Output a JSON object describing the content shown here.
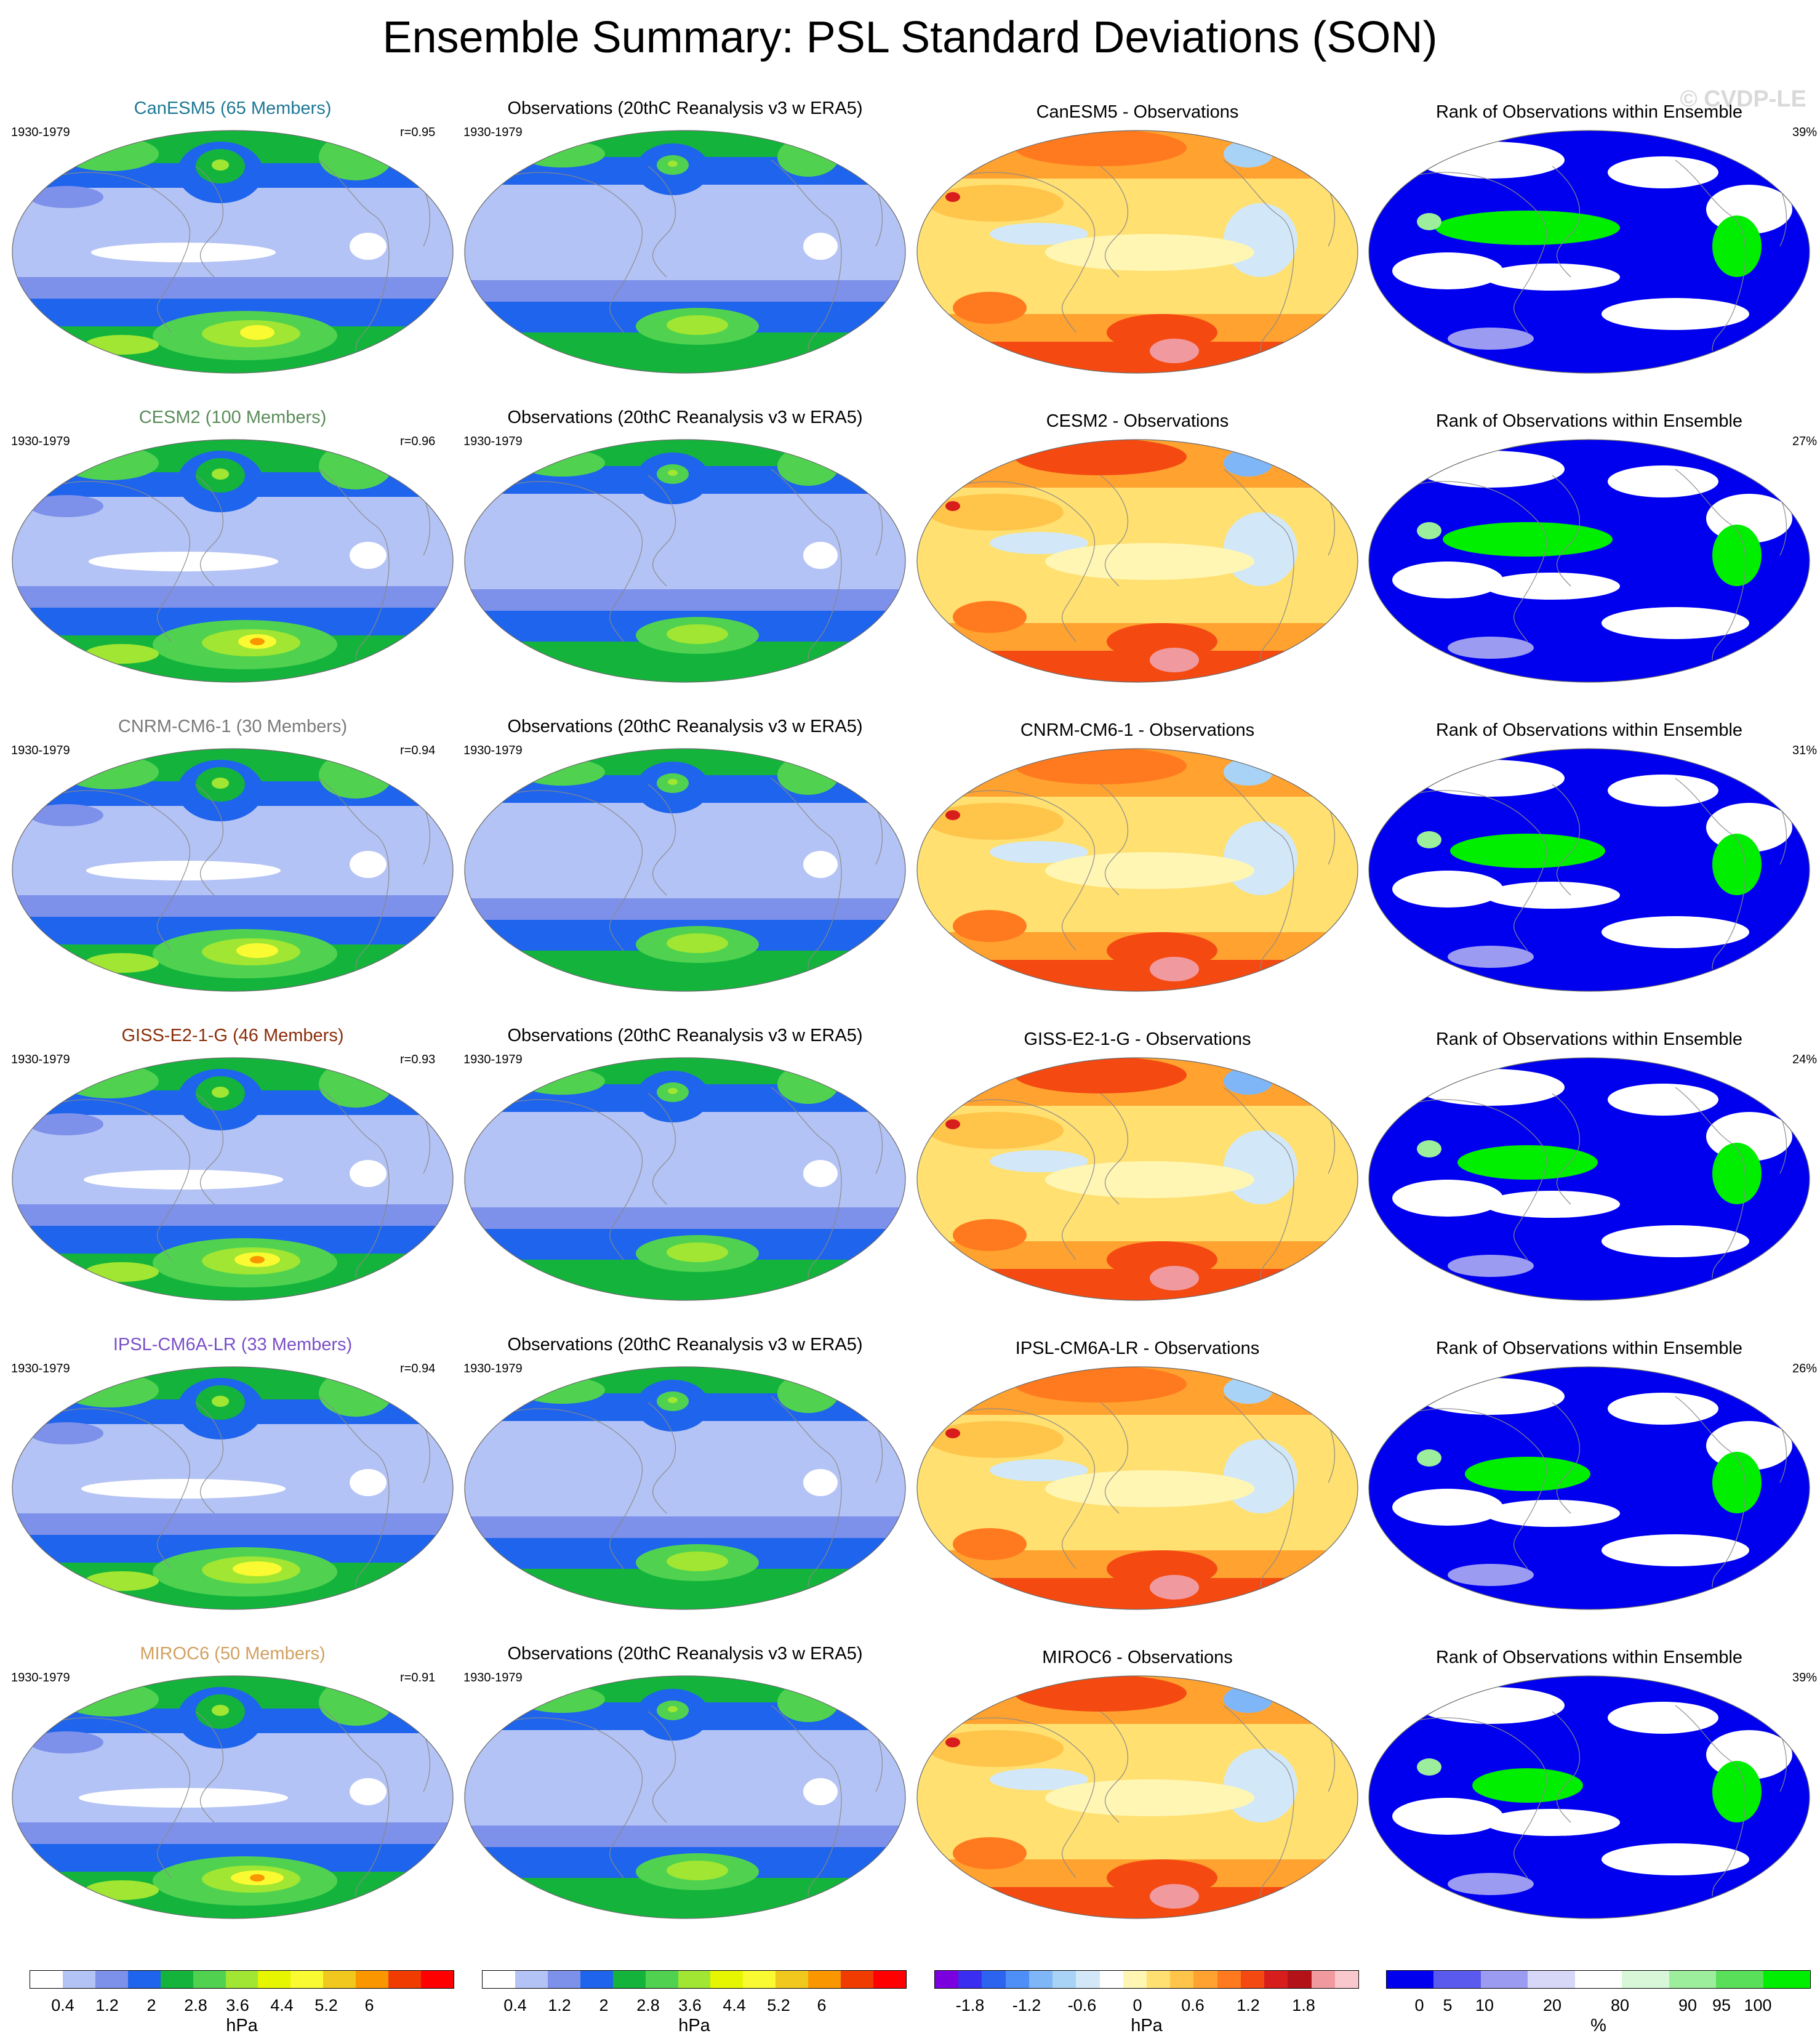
{
  "title": "Ensemble Summary: PSL Standard Deviations (SON)",
  "watermark": "© CVDP-LE",
  "colors": {
    "std_scale": [
      "#ffffff",
      "#b4c3f5",
      "#7d90ea",
      "#1e64ec",
      "#14b43c",
      "#50d250",
      "#a0e632",
      "#e6f500",
      "#fafa32",
      "#f0c81e",
      "#fa9600",
      "#f03c00",
      "#ff0000"
    ],
    "diff_scale": [
      "#7a00e0",
      "#3a2ef0",
      "#2c64ef",
      "#4e8ff7",
      "#7fb6f7",
      "#a8d3f6",
      "#d2e8f8",
      "#ffffff",
      "#fff6b4",
      "#ffe070",
      "#ffc44a",
      "#ffa230",
      "#ff7a1e",
      "#f44a12",
      "#d81d1d",
      "#b31218",
      "#f09aa0",
      "#f8c8cc"
    ],
    "rank_scale": [
      "#0000ee",
      "#5a5aee",
      "#9b9bf2",
      "#d7d7f8",
      "#ffffff",
      "#d8f7d8",
      "#9cee9c",
      "#5adf5a",
      "#00ee00"
    ]
  },
  "column_titles": {
    "observations": "Observations (20thC Reanalysis v3 w ERA5)",
    "rank": "Rank of Observations within Ensemble"
  },
  "rows": [
    {
      "model": "CanESM5",
      "members_title": "CanESM5 (65 Members)",
      "title_color": "#1e7896",
      "years": "1930-1979",
      "r": "r=0.95",
      "diff_title": "CanESM5 - Observations",
      "rank_pct": "39%"
    },
    {
      "model": "CESM2",
      "members_title": "CESM2 (100 Members)",
      "title_color": "#5a8c5a",
      "years": "1930-1979",
      "r": "r=0.96",
      "diff_title": "CESM2 - Observations",
      "rank_pct": "27%"
    },
    {
      "model": "CNRM-CM6-1",
      "members_title": "CNRM-CM6-1 (30 Members)",
      "title_color": "#7a7a7a",
      "years": "1930-1979",
      "r": "r=0.94",
      "diff_title": "CNRM-CM6-1 - Observations",
      "rank_pct": "31%"
    },
    {
      "model": "GISS-E2-1-G",
      "members_title": "GISS-E2-1-G (46 Members)",
      "title_color": "#8b2e0a",
      "years": "1930-1979",
      "r": "r=0.93",
      "diff_title": "GISS-E2-1-G - Observations",
      "rank_pct": "24%"
    },
    {
      "model": "IPSL-CM6A-LR",
      "members_title": "IPSL-CM6A-LR (33 Members)",
      "title_color": "#7a50c8",
      "years": "1930-1979",
      "r": "r=0.94",
      "diff_title": "IPSL-CM6A-LR - Observations",
      "rank_pct": "26%"
    },
    {
      "model": "MIROC6",
      "members_title": "MIROC6 (50 Members)",
      "title_color": "#d2a060",
      "years": "1930-1979",
      "r": "r=0.91",
      "diff_title": "MIROC6 - Observations",
      "rank_pct": "39%"
    }
  ],
  "colorbars": {
    "std_model": {
      "ticks": [
        "0.4",
        "1.2",
        "2",
        "2.8",
        "3.6",
        "4.4",
        "5.2",
        "6"
      ],
      "unit": "hPa"
    },
    "std_obs": {
      "ticks": [
        "0.4",
        "1.2",
        "2",
        "2.8",
        "3.6",
        "4.4",
        "5.2",
        "6"
      ],
      "unit": "hPa"
    },
    "diff": {
      "ticks": [
        "-1.8",
        "-1.2",
        "-0.6",
        "0",
        "0.6",
        "1.2",
        "1.8"
      ],
      "unit": "hPa"
    },
    "rank": {
      "ticks": [
        "0",
        "5",
        "10",
        "20",
        "80",
        "90",
        "95",
        "100"
      ],
      "unit": "%"
    }
  }
}
